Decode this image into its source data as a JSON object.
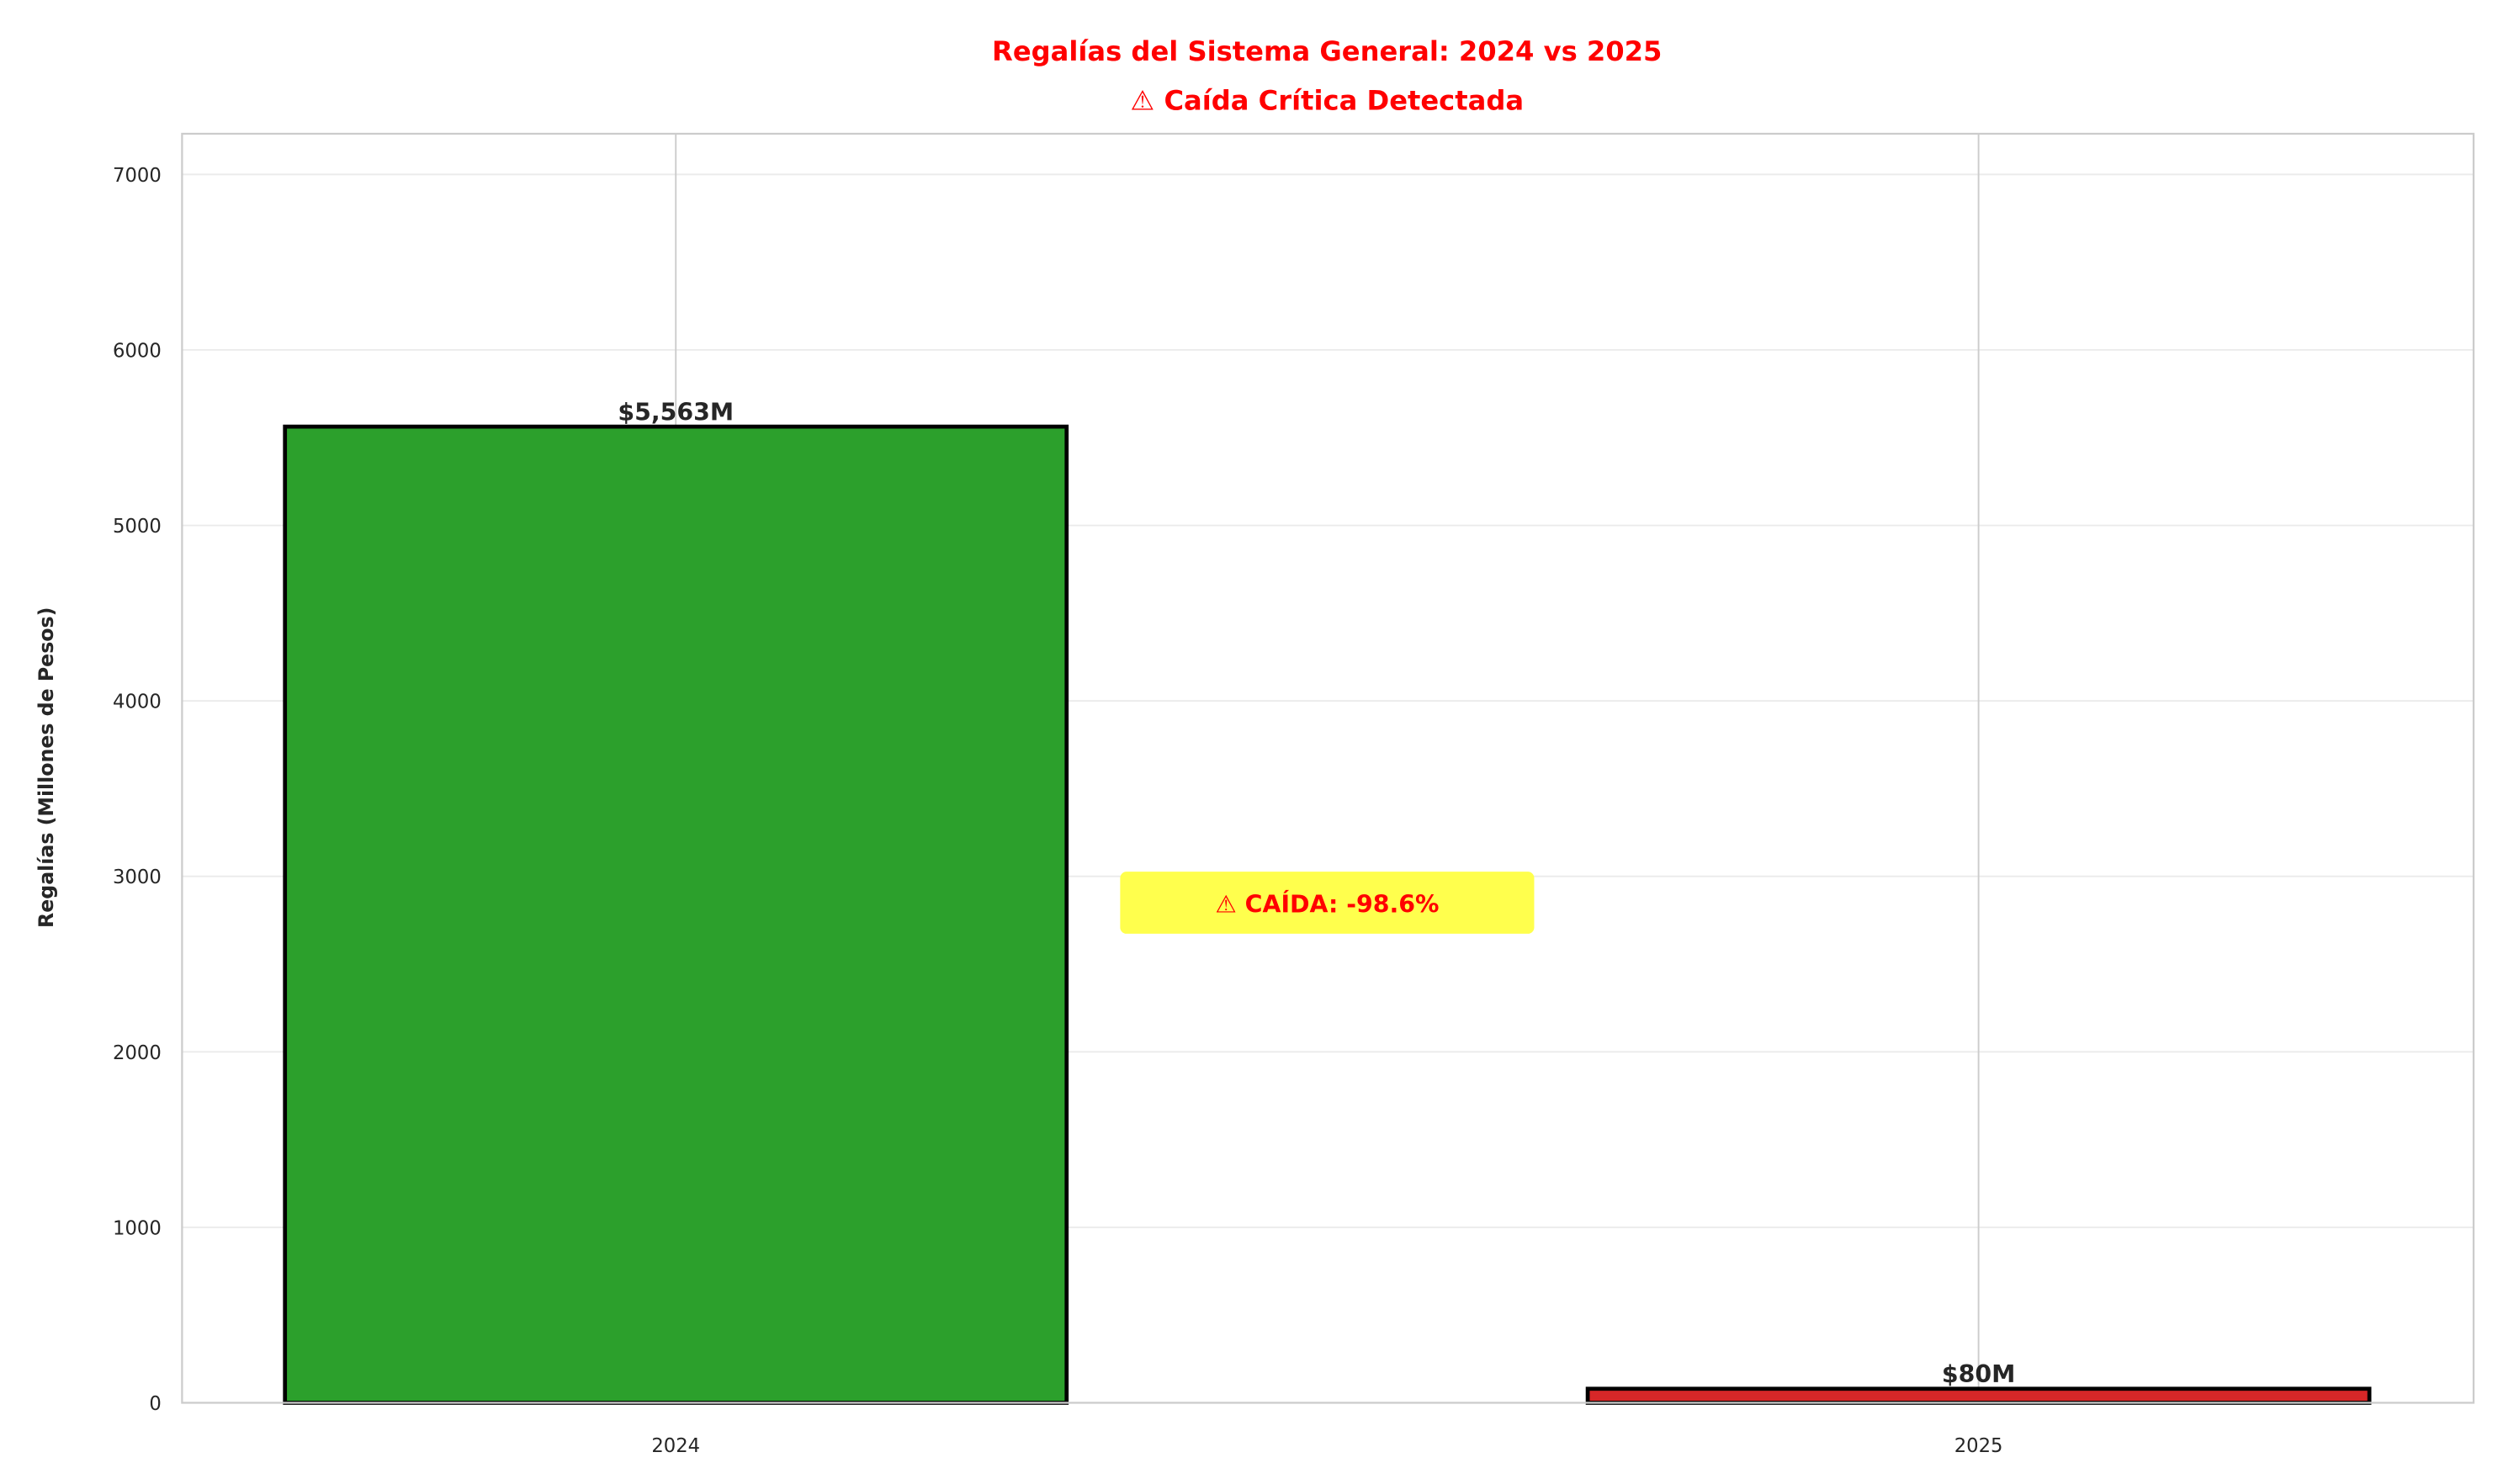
{
  "chart_data": {
    "type": "bar",
    "title_line1": "Regalías del Sistema General: 2024 vs 2025",
    "title_line2": "⚠ Caída Crítica Detectada",
    "xlabel": "",
    "ylabel": "Regalías (Millones de Pesos)",
    "categories": [
      "2024",
      "2025"
    ],
    "values": [
      5563,
      80
    ],
    "data_labels": [
      "$5,563M",
      "$80M"
    ],
    "bar_colors": [
      "#2ca02c",
      "#d62728"
    ],
    "ylim": [
      0,
      7232
    ],
    "yticks": [
      0,
      1000,
      2000,
      3000,
      4000,
      5000,
      6000,
      7000
    ],
    "grid": true,
    "annotation": {
      "text": "⚠ CAÍDA: -98.6%",
      "x": 0.5,
      "y": 2800,
      "text_color": "#ff0000",
      "box_color": "#ffff4d"
    },
    "title_color": "#ff0000"
  }
}
